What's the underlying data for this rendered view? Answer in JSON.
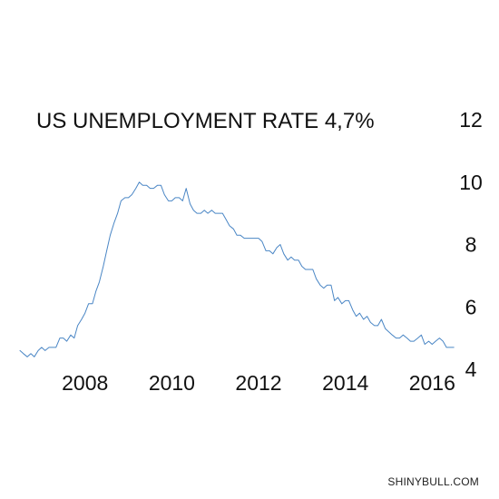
{
  "watermark": "SHINYBULL.COM",
  "chart_data": {
    "type": "line",
    "title": "US UNEMPLOYMENT RATE 4,7%",
    "xlabel": "",
    "ylabel": "",
    "x_ticks": [
      "2008",
      "2010",
      "2012",
      "2014",
      "2016"
    ],
    "y_ticks": [
      "4",
      "6",
      "8",
      "10",
      "12"
    ],
    "xlim": [
      2007.0,
      2017.1
    ],
    "ylim": [
      4,
      12
    ],
    "y_axis_position": "right",
    "grid": false,
    "legend": "none",
    "line_color": "#4a86c5",
    "series": [
      {
        "x": [
          2007.0,
          2007.08,
          2007.17,
          2007.25,
          2007.33,
          2007.42,
          2007.5,
          2007.58,
          2007.67,
          2007.75,
          2007.83,
          2007.92,
          2008.0,
          2008.08,
          2008.17,
          2008.25,
          2008.33,
          2008.42,
          2008.5,
          2008.58,
          2008.67,
          2008.75,
          2008.83,
          2008.92,
          2009.0,
          2009.08,
          2009.17,
          2009.25,
          2009.33,
          2009.42,
          2009.5,
          2009.58,
          2009.67,
          2009.75,
          2009.83,
          2009.92,
          2010.0,
          2010.08,
          2010.17,
          2010.25,
          2010.33,
          2010.42,
          2010.5,
          2010.58,
          2010.67,
          2010.75,
          2010.83,
          2010.92,
          2011.0,
          2011.08,
          2011.17,
          2011.25,
          2011.33,
          2011.42,
          2011.5,
          2011.58,
          2011.67,
          2011.75,
          2011.83,
          2011.92,
          2012.0,
          2012.08,
          2012.17,
          2012.25,
          2012.33,
          2012.42,
          2012.5,
          2012.58,
          2012.67,
          2012.75,
          2012.83,
          2012.92,
          2013.0,
          2013.08,
          2013.17,
          2013.25,
          2013.33,
          2013.42,
          2013.5,
          2013.58,
          2013.67,
          2013.75,
          2013.83,
          2013.92,
          2014.0,
          2014.08,
          2014.17,
          2014.25,
          2014.33,
          2014.42,
          2014.5,
          2014.58,
          2014.67,
          2014.75,
          2014.83,
          2014.92,
          2015.0,
          2015.08,
          2015.17,
          2015.25,
          2015.33,
          2015.42,
          2015.5,
          2015.58,
          2015.67,
          2015.75,
          2015.83,
          2015.92,
          2016.0,
          2016.08,
          2016.17,
          2016.25,
          2016.33,
          2016.42,
          2016.5,
          2016.58,
          2016.67,
          2016.75,
          2016.83,
          2016.92,
          2017.0
        ],
        "y": [
          4.6,
          4.5,
          4.4,
          4.5,
          4.4,
          4.6,
          4.7,
          4.6,
          4.7,
          4.7,
          4.7,
          5.0,
          5.0,
          4.9,
          5.1,
          5.0,
          5.4,
          5.6,
          5.8,
          6.1,
          6.1,
          6.5,
          6.8,
          7.3,
          7.8,
          8.3,
          8.7,
          9.0,
          9.4,
          9.5,
          9.5,
          9.6,
          9.8,
          10.0,
          9.9,
          9.9,
          9.8,
          9.8,
          9.9,
          9.9,
          9.6,
          9.4,
          9.4,
          9.5,
          9.5,
          9.4,
          9.8,
          9.3,
          9.1,
          9.0,
          9.0,
          9.1,
          9.0,
          9.1,
          9.0,
          9.0,
          9.0,
          8.8,
          8.6,
          8.5,
          8.3,
          8.3,
          8.2,
          8.2,
          8.2,
          8.2,
          8.2,
          8.1,
          7.8,
          7.8,
          7.7,
          7.9,
          8.0,
          7.7,
          7.5,
          7.6,
          7.5,
          7.5,
          7.3,
          7.2,
          7.2,
          7.2,
          6.9,
          6.7,
          6.6,
          6.7,
          6.7,
          6.2,
          6.3,
          6.1,
          6.2,
          6.2,
          5.9,
          5.7,
          5.8,
          5.6,
          5.7,
          5.5,
          5.4,
          5.4,
          5.6,
          5.3,
          5.2,
          5.1,
          5.0,
          5.0,
          5.1,
          5.0,
          4.9,
          4.9,
          5.0,
          5.1,
          4.8,
          4.9,
          4.8,
          4.9,
          5.0,
          4.9,
          4.7,
          4.7,
          4.7
        ]
      }
    ]
  }
}
